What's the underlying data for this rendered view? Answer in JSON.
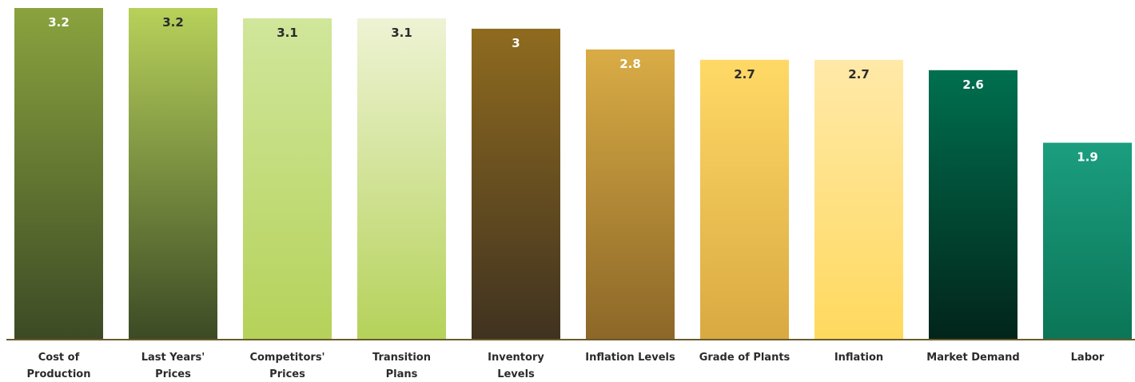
{
  "chart_data": {
    "type": "bar",
    "categories": [
      [
        "Cost of",
        "Production"
      ],
      [
        "Last Years'",
        "Prices"
      ],
      [
        "Competitors'",
        "Prices"
      ],
      [
        "Transition",
        "Plans"
      ],
      [
        "Inventory",
        "Levels"
      ],
      [
        "Inflation Levels"
      ],
      [
        "Grade of Plants"
      ],
      [
        "Inflation"
      ],
      [
        "Market Demand"
      ],
      [
        "Labor"
      ]
    ],
    "values": [
      3.2,
      3.2,
      3.1,
      3.1,
      3,
      2.8,
      2.7,
      2.7,
      2.6,
      1.9
    ],
    "value_labels": [
      "3.2",
      "3.2",
      "3.1",
      "3.1",
      "3",
      "2.8",
      "2.7",
      "2.7",
      "2.6",
      "1.9"
    ],
    "ylim": [
      0,
      3.2
    ],
    "grid": false,
    "legend": "none",
    "bar_gradients": [
      [
        "#8aa33e",
        "#3c4a25"
      ],
      [
        "#b7d15a",
        "#3c4a25"
      ],
      [
        "#d0e69b",
        "#b5d25a"
      ],
      [
        "#eef3d4",
        "#b5d25a"
      ],
      [
        "#8f6b1f",
        "#3f3220"
      ],
      [
        "#d9ac45",
        "#8c6728"
      ],
      [
        "#ffd966",
        "#d9a941"
      ],
      [
        "#ffe9a8",
        "#ffd95e"
      ],
      [
        "#00704f",
        "#02241a"
      ],
      [
        "#1b9e7f",
        "#0b7557"
      ]
    ],
    "value_label_colors": [
      "#ffffff",
      "#2b2b2b",
      "#2b2b2b",
      "#2b2b2b",
      "#ffffff",
      "#ffffff",
      "#2b2b2b",
      "#2b2b2b",
      "#ffffff",
      "#ffffff"
    ],
    "axis_color": "#6b5a2b"
  }
}
